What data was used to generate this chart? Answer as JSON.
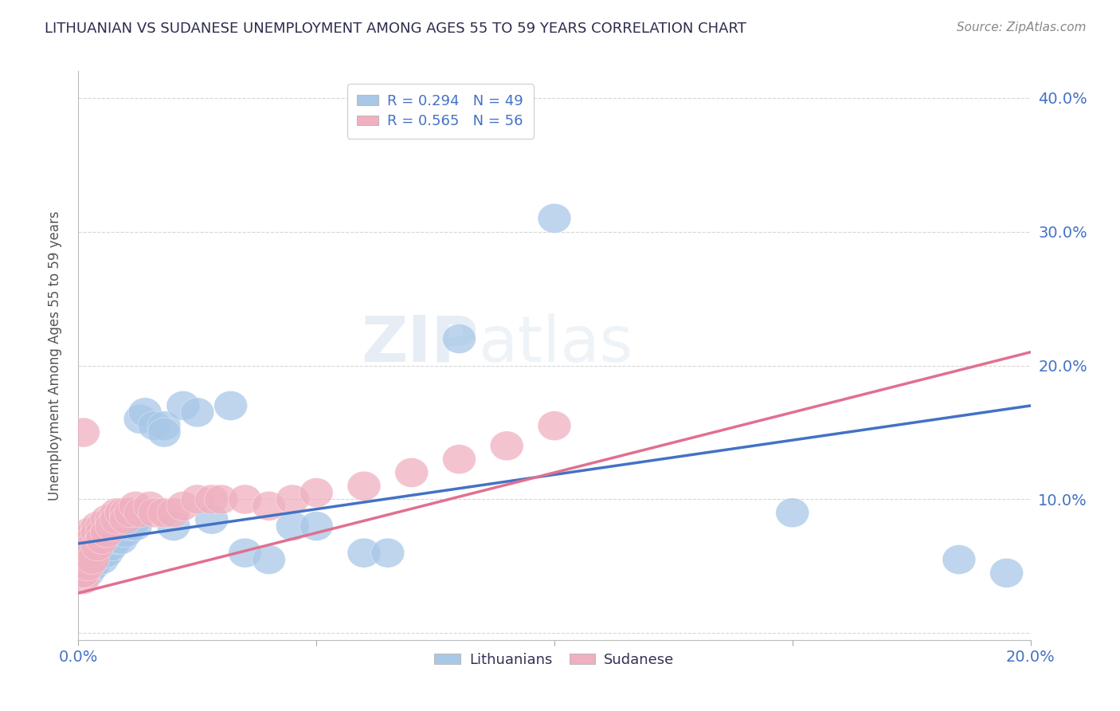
{
  "title": "LITHUANIAN VS SUDANESE UNEMPLOYMENT AMONG AGES 55 TO 59 YEARS CORRELATION CHART",
  "source": "Source: ZipAtlas.com",
  "ylabel": "Unemployment Among Ages 55 to 59 years",
  "xlim": [
    0.0,
    0.2
  ],
  "ylim": [
    -0.005,
    0.42
  ],
  "yticks": [
    0.0,
    0.1,
    0.2,
    0.3,
    0.4
  ],
  "yticklabels": [
    "",
    "10.0%",
    "20.0%",
    "30.0%",
    "40.0%"
  ],
  "blue_R": 0.294,
  "blue_N": 49,
  "pink_R": 0.565,
  "pink_N": 56,
  "blue_color": "#a8c8e8",
  "pink_color": "#f0b0c0",
  "blue_line_color": "#4472c4",
  "pink_line_color": "#e07090",
  "legend_labels": [
    "Lithuanians",
    "Sudanese"
  ],
  "watermark_zip": "ZIP",
  "watermark_atlas": "atlas",
  "background_color": "#ffffff",
  "grid_color": "#cccccc",
  "title_color": "#2d2d4e",
  "axis_label_color": "#4472c4",
  "tick_label_color": "#4472c4",
  "blue_x": [
    0.001,
    0.001,
    0.002,
    0.002,
    0.002,
    0.003,
    0.003,
    0.003,
    0.003,
    0.004,
    0.004,
    0.005,
    0.005,
    0.005,
    0.006,
    0.006,
    0.006,
    0.007,
    0.007,
    0.008,
    0.008,
    0.009,
    0.009,
    0.01,
    0.01,
    0.011,
    0.012,
    0.012,
    0.013,
    0.014,
    0.016,
    0.018,
    0.018,
    0.02,
    0.022,
    0.025,
    0.028,
    0.032,
    0.035,
    0.04,
    0.045,
    0.05,
    0.06,
    0.065,
    0.08,
    0.1,
    0.15,
    0.185,
    0.195
  ],
  "blue_y": [
    0.05,
    0.045,
    0.06,
    0.055,
    0.045,
    0.065,
    0.06,
    0.055,
    0.05,
    0.07,
    0.06,
    0.065,
    0.06,
    0.055,
    0.07,
    0.065,
    0.06,
    0.07,
    0.065,
    0.075,
    0.07,
    0.075,
    0.07,
    0.08,
    0.075,
    0.08,
    0.085,
    0.08,
    0.16,
    0.165,
    0.155,
    0.155,
    0.15,
    0.08,
    0.17,
    0.165,
    0.085,
    0.17,
    0.06,
    0.055,
    0.08,
    0.08,
    0.06,
    0.06,
    0.22,
    0.31,
    0.09,
    0.055,
    0.045
  ],
  "pink_x": [
    0.001,
    0.001,
    0.001,
    0.001,
    0.001,
    0.001,
    0.001,
    0.001,
    0.001,
    0.002,
    0.002,
    0.002,
    0.002,
    0.002,
    0.002,
    0.003,
    0.003,
    0.003,
    0.003,
    0.003,
    0.004,
    0.004,
    0.004,
    0.005,
    0.005,
    0.005,
    0.006,
    0.006,
    0.007,
    0.007,
    0.008,
    0.008,
    0.009,
    0.01,
    0.01,
    0.011,
    0.012,
    0.013,
    0.015,
    0.016,
    0.018,
    0.02,
    0.022,
    0.025,
    0.028,
    0.03,
    0.035,
    0.04,
    0.045,
    0.05,
    0.06,
    0.07,
    0.08,
    0.09,
    0.1,
    0.001
  ],
  "pink_y": [
    0.065,
    0.06,
    0.055,
    0.05,
    0.045,
    0.04,
    0.055,
    0.05,
    0.045,
    0.07,
    0.065,
    0.06,
    0.055,
    0.05,
    0.075,
    0.075,
    0.07,
    0.065,
    0.06,
    0.055,
    0.08,
    0.075,
    0.065,
    0.08,
    0.075,
    0.07,
    0.085,
    0.075,
    0.085,
    0.08,
    0.09,
    0.085,
    0.09,
    0.09,
    0.085,
    0.09,
    0.095,
    0.09,
    0.095,
    0.09,
    0.09,
    0.09,
    0.095,
    0.1,
    0.1,
    0.1,
    0.1,
    0.095,
    0.1,
    0.105,
    0.11,
    0.12,
    0.13,
    0.14,
    0.155,
    0.15
  ],
  "blue_trendline": [
    0.067,
    0.17
  ],
  "pink_trendline": [
    0.03,
    0.21
  ]
}
